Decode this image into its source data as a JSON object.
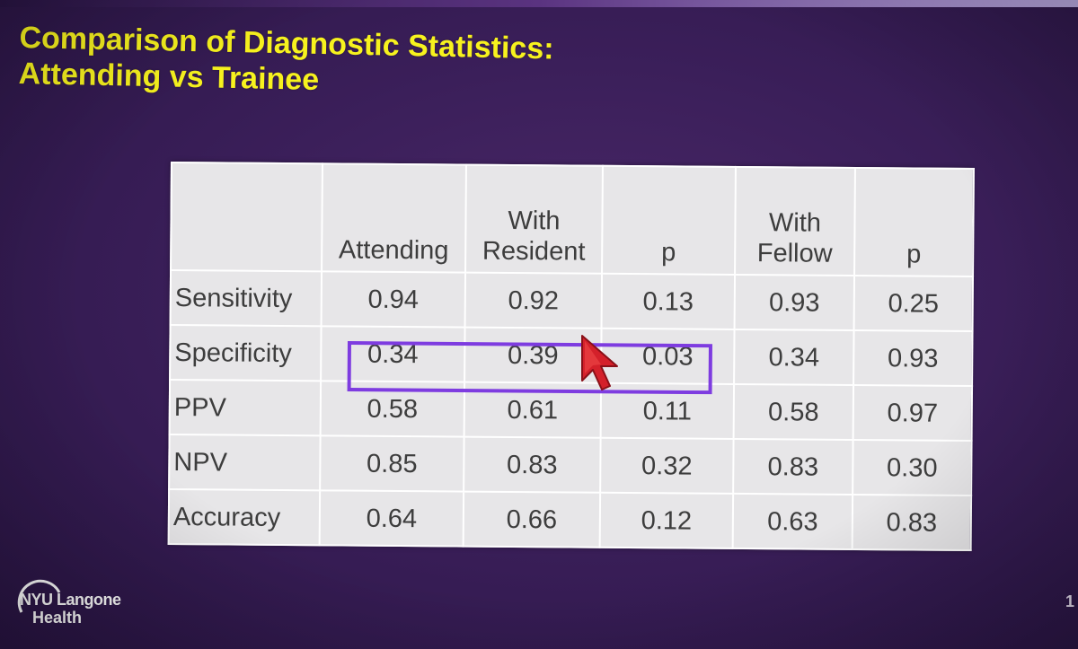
{
  "slide": {
    "title_line1": "Comparison of Diagnostic Statistics:",
    "title_line2": "Attending  vs Trainee",
    "page_number": "1",
    "accent_color": "#f7f21e",
    "highlight_color": "#7e3ce0"
  },
  "table": {
    "headers": [
      {
        "line1": "",
        "line2": ""
      },
      {
        "line1": "",
        "line2": "Attending"
      },
      {
        "line1": "With",
        "line2": "Resident"
      },
      {
        "line1": "",
        "line2": "p"
      },
      {
        "line1": "With",
        "line2": "Fellow"
      },
      {
        "line1": "",
        "line2": "p"
      }
    ],
    "rows": [
      {
        "label": "Sensitivity",
        "attending": "0.94",
        "with_resident": "0.92",
        "p_resident": "0.13",
        "with_fellow": "0.93",
        "p_fellow": "0.25"
      },
      {
        "label": "Specificity",
        "attending": "0.34",
        "with_resident": "0.39",
        "p_resident": "0.03",
        "with_fellow": "0.34",
        "p_fellow": "0.93"
      },
      {
        "label": "PPV",
        "attending": "0.58",
        "with_resident": "0.61",
        "p_resident": "0.11",
        "with_fellow": "0.58",
        "p_fellow": "0.97"
      },
      {
        "label": "NPV",
        "attending": "0.85",
        "with_resident": "0.83",
        "p_resident": "0.32",
        "with_fellow": "0.83",
        "p_fellow": "0.30"
      },
      {
        "label": "Accuracy",
        "attending": "0.64",
        "with_resident": "0.66",
        "p_resident": "0.12",
        "with_fellow": "0.63",
        "p_fellow": "0.83"
      }
    ]
  },
  "logo": {
    "line1": "NYU Langone",
    "line2": "Health"
  },
  "icons": {
    "cursor": "arrow-cursor-icon",
    "logo": "nyu-langone-logo"
  }
}
